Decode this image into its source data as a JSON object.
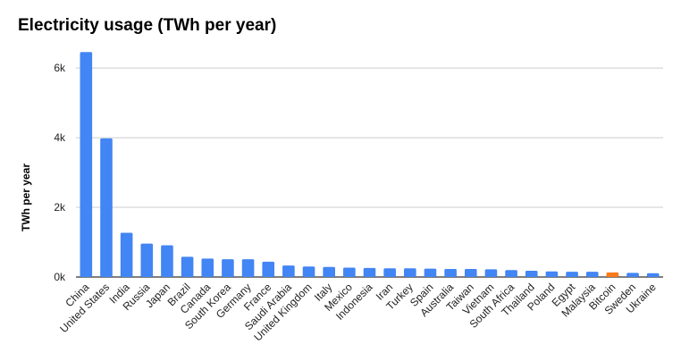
{
  "chart_data": {
    "type": "bar",
    "title": "Electricity usage (TWh per year)",
    "xlabel": "",
    "ylabel": "TWh per year",
    "ylim": [
      0,
      6800
    ],
    "yticks": [
      0,
      2000,
      4000,
      6000
    ],
    "ytick_labels": [
      "0k",
      "2k",
      "4k",
      "6k"
    ],
    "grid": true,
    "legend": "none",
    "colors": {
      "default": "#4285f4",
      "highlight": "#fa7a1a",
      "grid": "#cccccc",
      "axis": "#333333"
    },
    "highlight_category": "Bitcoin",
    "categories": [
      "China",
      "United States",
      "India",
      "Russia",
      "Japan",
      "Brazil",
      "Canada",
      "South Korea",
      "Germany",
      "France",
      "Saudi Arabia",
      "United Kingdom",
      "Italy",
      "Mexico",
      "Indonesia",
      "Iran",
      "Turkey",
      "Spain",
      "Australia",
      "Taiwan",
      "Vietnam",
      "South Africa",
      "Thailand",
      "Poland",
      "Egypt",
      "Malaysia",
      "Bitcoin",
      "Sweden",
      "Ukraine"
    ],
    "values": [
      6460,
      3980,
      1270,
      960,
      910,
      580,
      530,
      510,
      510,
      440,
      330,
      300,
      290,
      270,
      260,
      250,
      250,
      240,
      230,
      230,
      220,
      200,
      180,
      160,
      150,
      150,
      130,
      120,
      110
    ]
  }
}
